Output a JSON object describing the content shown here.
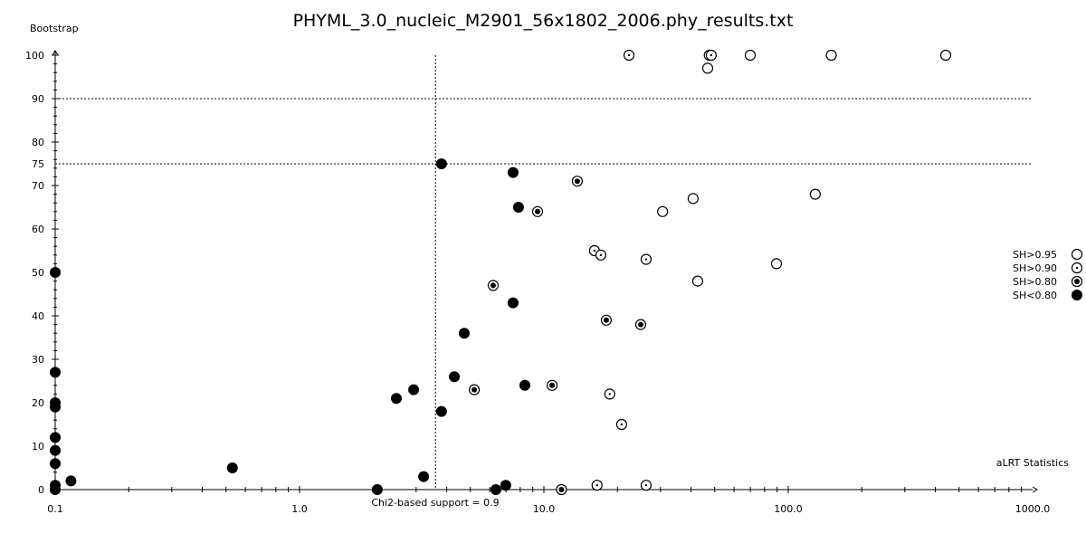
{
  "chart_data": {
    "type": "scatter",
    "title": "PHYML_3.0_nucleic_M2901_56x1802_2006.phy_results.txt",
    "xlabel": "aLRT Statistics",
    "ylabel": "Bootstrap",
    "x_scale": "log",
    "xlim": [
      0.1,
      1000
    ],
    "ylim": [
      0,
      100
    ],
    "x_ticks": [
      "0.1",
      "1.0",
      "10.0",
      "100.0",
      "1000.0"
    ],
    "y_ticks": [
      "0",
      "10",
      "20",
      "30",
      "40",
      "50",
      "60",
      "70",
      "75",
      "80",
      "90",
      "100"
    ],
    "grid": false,
    "reference_lines": {
      "vertical": {
        "x": 3.6,
        "label": "Chi2-based support = 0.9"
      },
      "horizontal": [
        75,
        90
      ]
    },
    "legend_position": "right",
    "series": [
      {
        "name": "SH>0.95",
        "marker": "open-circle",
        "points": [
          [
            46.8,
            97
          ],
          [
            69.9,
            100
          ],
          [
            150,
            100
          ],
          [
            441,
            100
          ],
          [
            47.5,
            100
          ],
          [
            30.6,
            64
          ],
          [
            40.8,
            67
          ],
          [
            42.6,
            48
          ],
          [
            89.5,
            52
          ],
          [
            129,
            68
          ]
        ]
      },
      {
        "name": "SH>0.90",
        "marker": "circle-with-dot",
        "points": [
          [
            22.3,
            100
          ],
          [
            48.4,
            100
          ],
          [
            16.1,
            55
          ],
          [
            17.1,
            54
          ],
          [
            26.2,
            53
          ],
          [
            18.6,
            22
          ],
          [
            20.8,
            15
          ],
          [
            16.5,
            1
          ],
          [
            26.2,
            1
          ]
        ]
      },
      {
        "name": "SH>0.80",
        "marker": "bullseye",
        "points": [
          [
            6.2,
            47
          ],
          [
            5.19,
            23
          ],
          [
            9.42,
            64
          ],
          [
            10.8,
            24
          ],
          [
            11.8,
            0
          ],
          [
            13.7,
            71
          ],
          [
            18.0,
            39
          ],
          [
            24.9,
            38
          ]
        ]
      },
      {
        "name": "SH<0.80",
        "marker": "filled-circle",
        "points": [
          [
            0.1,
            50
          ],
          [
            0.1,
            27
          ],
          [
            0.1,
            20
          ],
          [
            0.1,
            19
          ],
          [
            0.1,
            12
          ],
          [
            0.1,
            9
          ],
          [
            0.1,
            6
          ],
          [
            0.1,
            1
          ],
          [
            0.1,
            0
          ],
          [
            0.116,
            2
          ],
          [
            0.531,
            5
          ],
          [
            2.08,
            0
          ],
          [
            2.49,
            21
          ],
          [
            2.93,
            23
          ],
          [
            3.22,
            3
          ],
          [
            3.81,
            75
          ],
          [
            3.81,
            18
          ],
          [
            4.3,
            26
          ],
          [
            4.72,
            36
          ],
          [
            6.36,
            0
          ],
          [
            6.98,
            1
          ],
          [
            7.48,
            73
          ],
          [
            7.48,
            43
          ],
          [
            7.87,
            65
          ],
          [
            8.36,
            24
          ]
        ]
      }
    ]
  }
}
